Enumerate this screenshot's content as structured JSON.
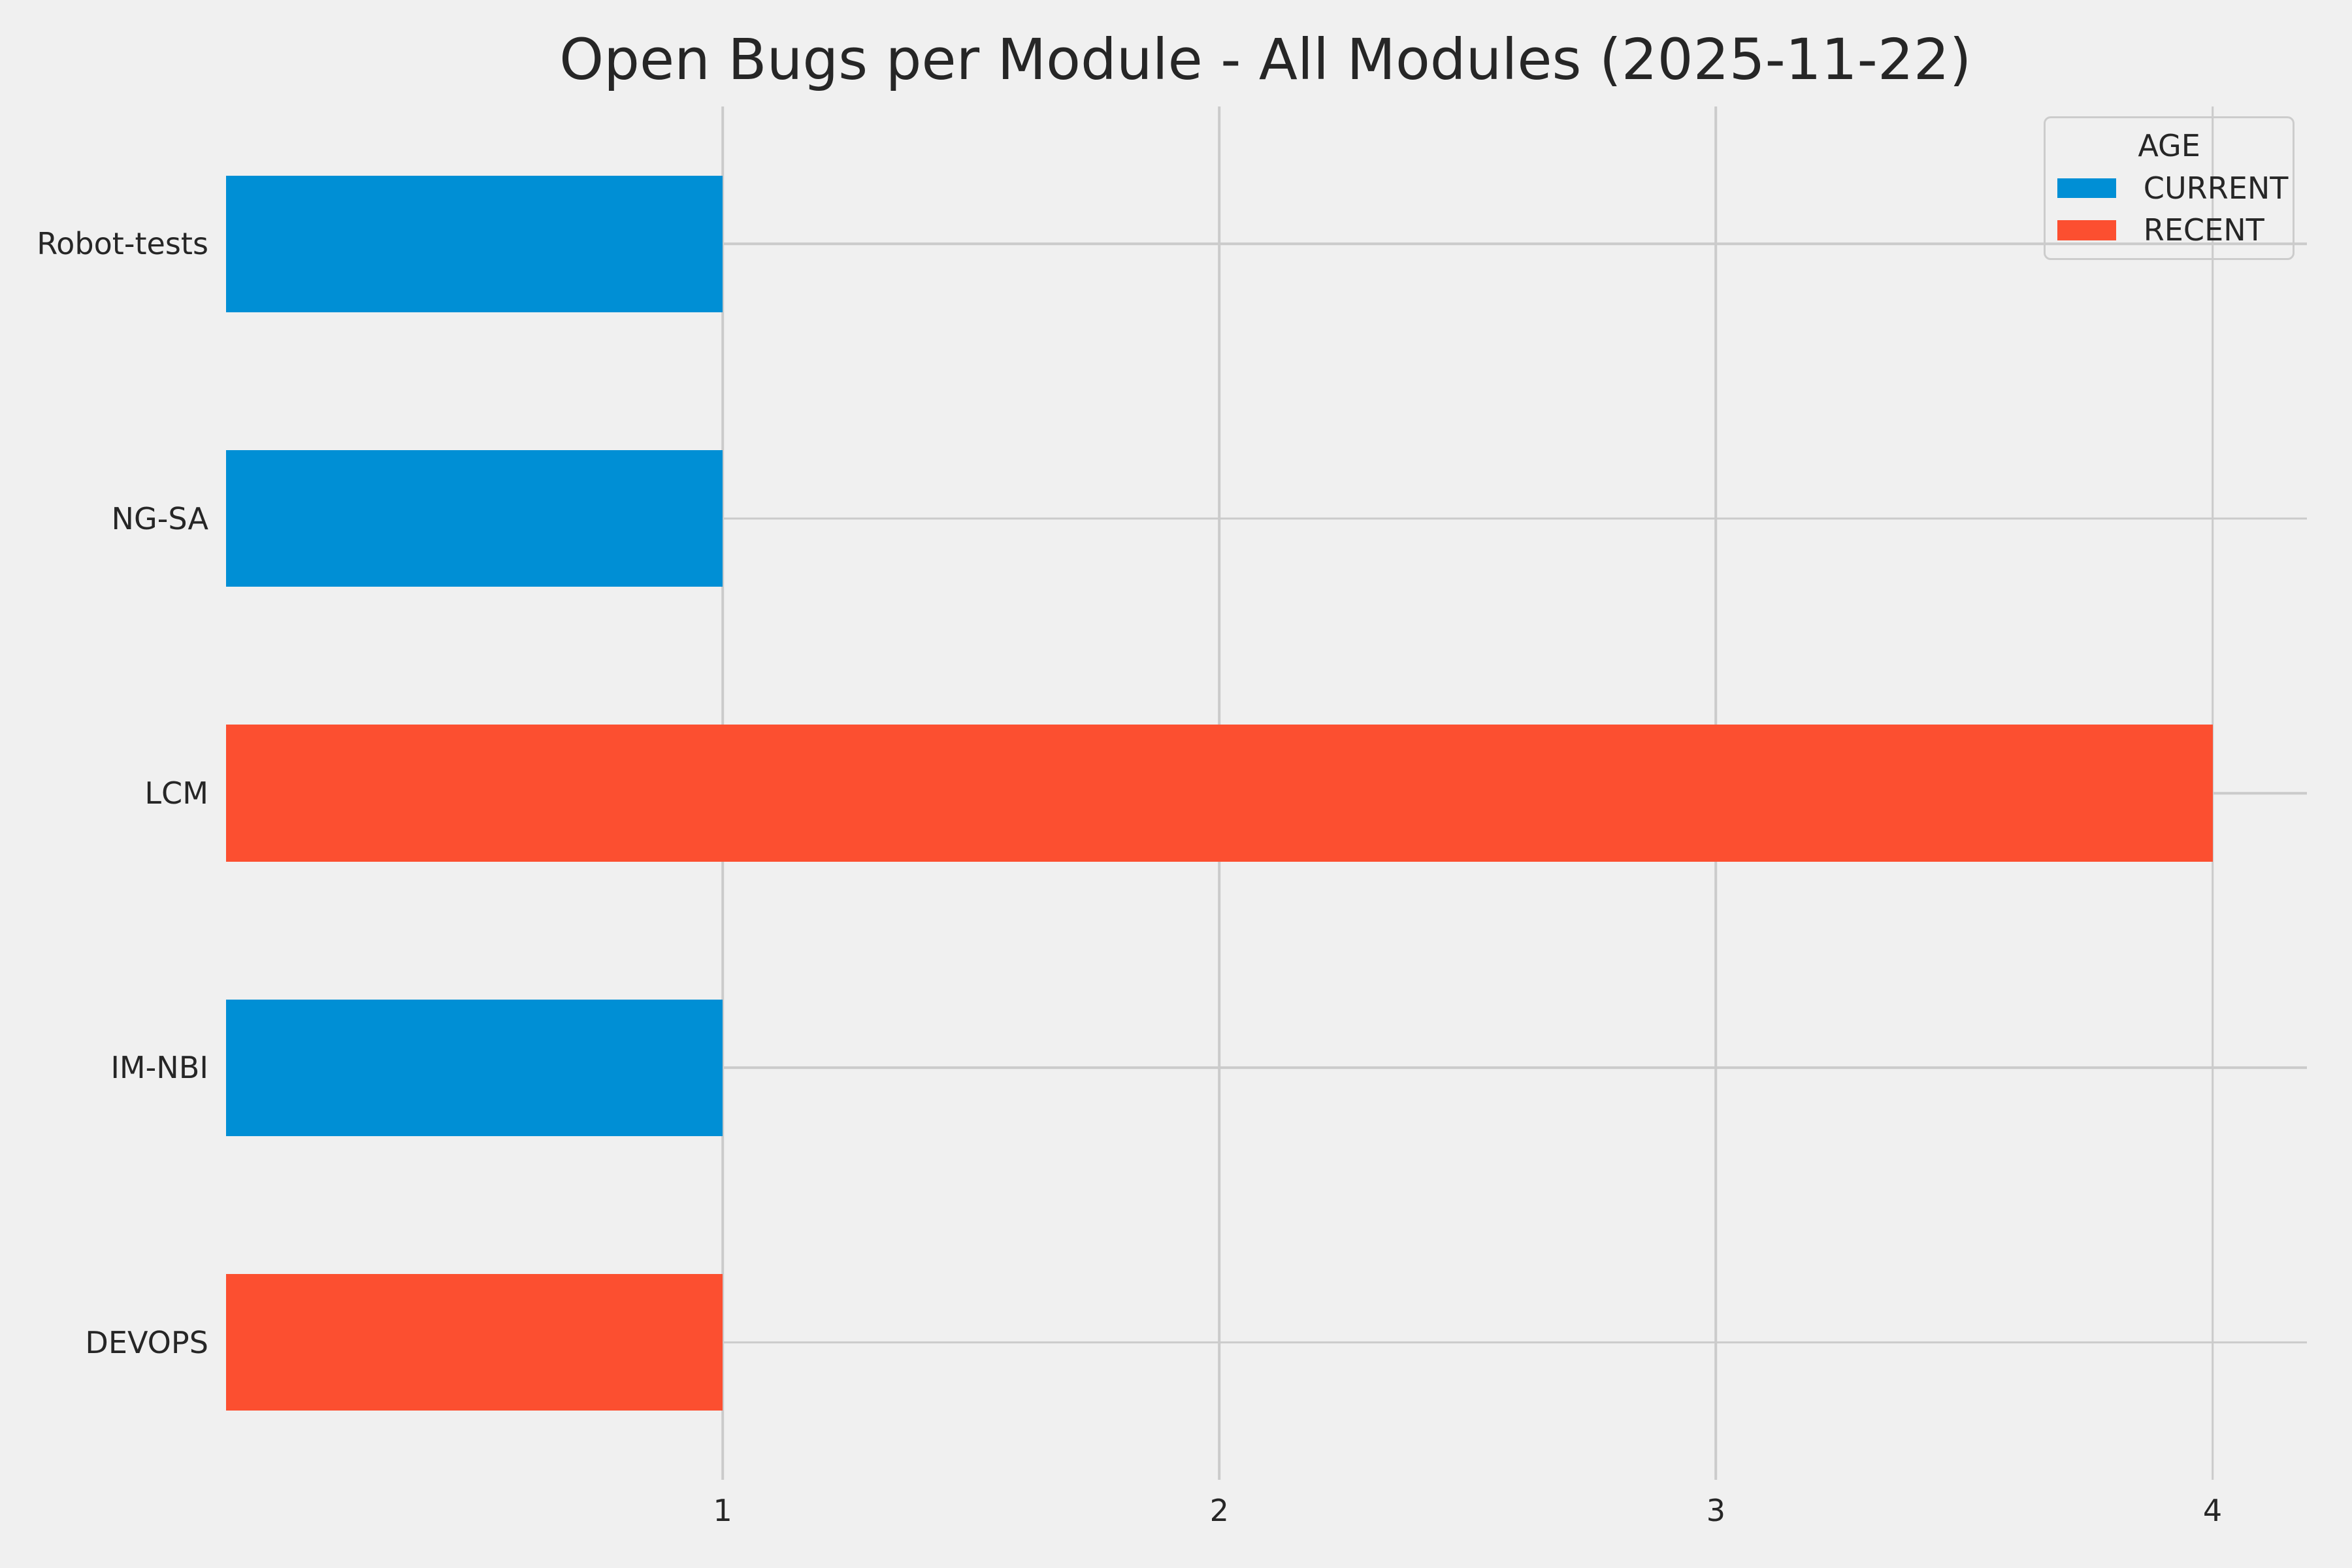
{
  "title": "Open Bugs per Module - All Modules (2025-11-22)",
  "legend": {
    "title": "AGE",
    "entries": [
      {
        "label": "CURRENT",
        "color": "#008fd5"
      },
      {
        "label": "RECENT",
        "color": "#fc4f30"
      }
    ]
  },
  "chart_data": {
    "type": "bar",
    "orientation": "horizontal",
    "title": "Open Bugs per Module - All Modules (2025-11-22)",
    "categories": [
      "Robot-tests",
      "NG-SA",
      "LCM",
      "IM-NBI",
      "DEVOPS"
    ],
    "values": [
      1,
      1,
      4,
      1,
      1
    ],
    "bar_age": [
      "CURRENT",
      "CURRENT",
      "RECENT",
      "CURRENT",
      "RECENT"
    ],
    "bar_colors": [
      "#008fd5",
      "#008fd5",
      "#fc4f30",
      "#008fd5",
      "#fc4f30"
    ],
    "xlabel": "",
    "ylabel": "",
    "x_ticks": [
      1,
      2,
      3,
      4
    ],
    "xlim": [
      0,
      4.19
    ],
    "grid": true,
    "legend_title": "AGE",
    "legend_position": "upper right",
    "styles": {
      "background": "#f0f0f0",
      "grid_color": "#cbcbcb",
      "text_color": "#262626"
    }
  }
}
